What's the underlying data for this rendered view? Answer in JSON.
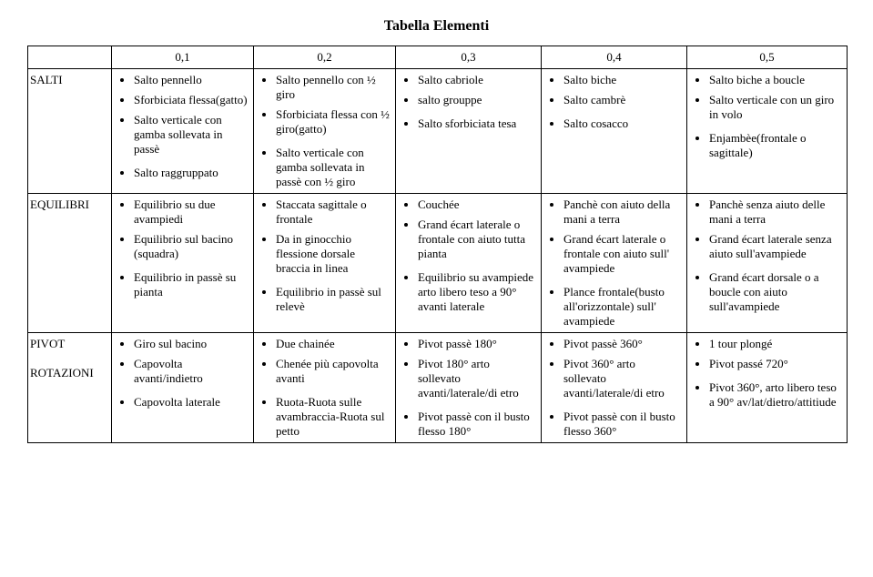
{
  "title": "Tabella Elementi",
  "columns": [
    "0,1",
    "0,2",
    "0,3",
    "0,4",
    "0,5"
  ],
  "rows": [
    {
      "label": "SALTI",
      "cells": [
        [
          {
            "text": "Salto pennello"
          },
          {
            "text": "Sforbiciata flessa(gatto)"
          },
          {
            "text": "Salto verticale con gamba sollevata in passè"
          },
          {
            "text": "Salto raggruppato",
            "gap": true
          }
        ],
        [
          {
            "text": "Salto pennello con ½ giro"
          },
          {
            "text": "Sforbiciata flessa con ½ giro(gatto)"
          },
          {
            "text": "Salto verticale con gamba sollevata in passè con ½ giro",
            "gap": true
          }
        ],
        [
          {
            "text": "Salto cabriole"
          },
          {
            "text": "salto grouppe"
          },
          {
            "text": "Salto sforbiciata tesa",
            "gap": true
          }
        ],
        [
          {
            "text": "Salto biche"
          },
          {
            "text": "Salto cambrè"
          },
          {
            "text": "Salto cosacco",
            "gap": true
          }
        ],
        [
          {
            "text": "Salto biche a boucle"
          },
          {
            "text": "Salto verticale con un giro in volo"
          },
          {
            "text": "Enjambèe(frontale o sagittale)",
            "gap": true
          }
        ]
      ]
    },
    {
      "label": "EQUILIBRI",
      "cells": [
        [
          {
            "text": "Equilibrio su due avampiedi"
          },
          {
            "text": "Equilibrio sul bacino (squadra)"
          },
          {
            "text": "Equilibrio in passè su pianta",
            "gap": true
          }
        ],
        [
          {
            "text": "Staccata sagittale o frontale"
          },
          {
            "text": "Da in ginocchio flessione dorsale braccia in linea"
          },
          {
            "text": "Equilibrio in passè sul relevè",
            "gap": true
          }
        ],
        [
          {
            "text": "Couchée"
          },
          {
            "text": "Grand écart laterale o frontale con aiuto tutta pianta"
          },
          {
            "text": "Equilibrio su avampiede arto libero teso a 90° avanti laterale",
            "gap": true
          }
        ],
        [
          {
            "text": "Panchè con aiuto della mani a terra"
          },
          {
            "text": "Grand écart laterale o frontale con aiuto sull' avampiede"
          },
          {
            "text": "Plance frontale(busto all'orizzontale) sull' avampiede",
            "gap": true
          }
        ],
        [
          {
            "text": "Panchè senza aiuto delle mani a terra"
          },
          {
            "text": "Grand écart laterale senza aiuto sull'avampiede"
          },
          {
            "text": "Grand écart dorsale o a boucle con aiuto sull'avampiede",
            "gap": true
          }
        ]
      ]
    },
    {
      "label": "PIVOT\nROTAZIONI",
      "cells": [
        [
          {
            "text": "Giro sul bacino"
          },
          {
            "text": "Capovolta avanti/indietro"
          },
          {
            "text": "Capovolta laterale",
            "gap": true
          }
        ],
        [
          {
            "text": "Due chainée"
          },
          {
            "text": "Chenée più capovolta avanti"
          },
          {
            "text": "Ruota-Ruota sulle avambraccia-Ruota sul petto",
            "gap": true
          }
        ],
        [
          {
            "text": "Pivot passè 180°"
          },
          {
            "text": "Pivot 180° arto sollevato avanti/laterale/di etro"
          },
          {
            "text": "Pivot passè con il busto flesso 180°",
            "gap": true
          }
        ],
        [
          {
            "text": "Pivot passè 360°"
          },
          {
            "text": "Pivot 360° arto sollevato avanti/laterale/di etro"
          },
          {
            "text": "Pivot passè con il busto flesso 360°",
            "gap": true
          }
        ],
        [
          {
            "text": "1 tour plongé"
          },
          {
            "text": "Pivot passé 720°"
          },
          {
            "text": "Pivot 360°, arto libero teso a 90° av/lat/dietro/attitiude",
            "gap": true
          }
        ]
      ]
    }
  ]
}
